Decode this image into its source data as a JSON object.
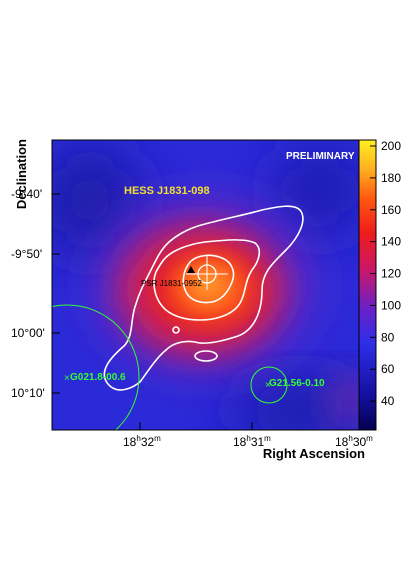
{
  "chart_data": {
    "type": "heatmap",
    "title": "",
    "xlabel": "Right Ascension",
    "ylabel": "Declination",
    "watermark": "PRELIMINARY",
    "source_label": "HESS J1831-098",
    "pulsar_label": "PSR J1831-0952",
    "snr_labels": [
      "G021.8-00.6",
      "G21.56-0.10"
    ],
    "x_ticks": [
      {
        "h": "18",
        "m": "32"
      },
      {
        "h": "18",
        "m": "31"
      },
      {
        "h": "18",
        "m": "30"
      }
    ],
    "y_ticks": [
      "-9°40'",
      "-9°50'",
      "10°00'",
      "10°10'"
    ],
    "colorbar": {
      "ticks": [
        "40",
        "60",
        "80",
        "100",
        "120",
        "140",
        "160",
        "180",
        "200"
      ],
      "range": [
        25,
        200
      ]
    },
    "colors": {
      "label_yellow": "#f0e030",
      "snr_green": "#33ff33",
      "contour": "#ffffff"
    }
  }
}
